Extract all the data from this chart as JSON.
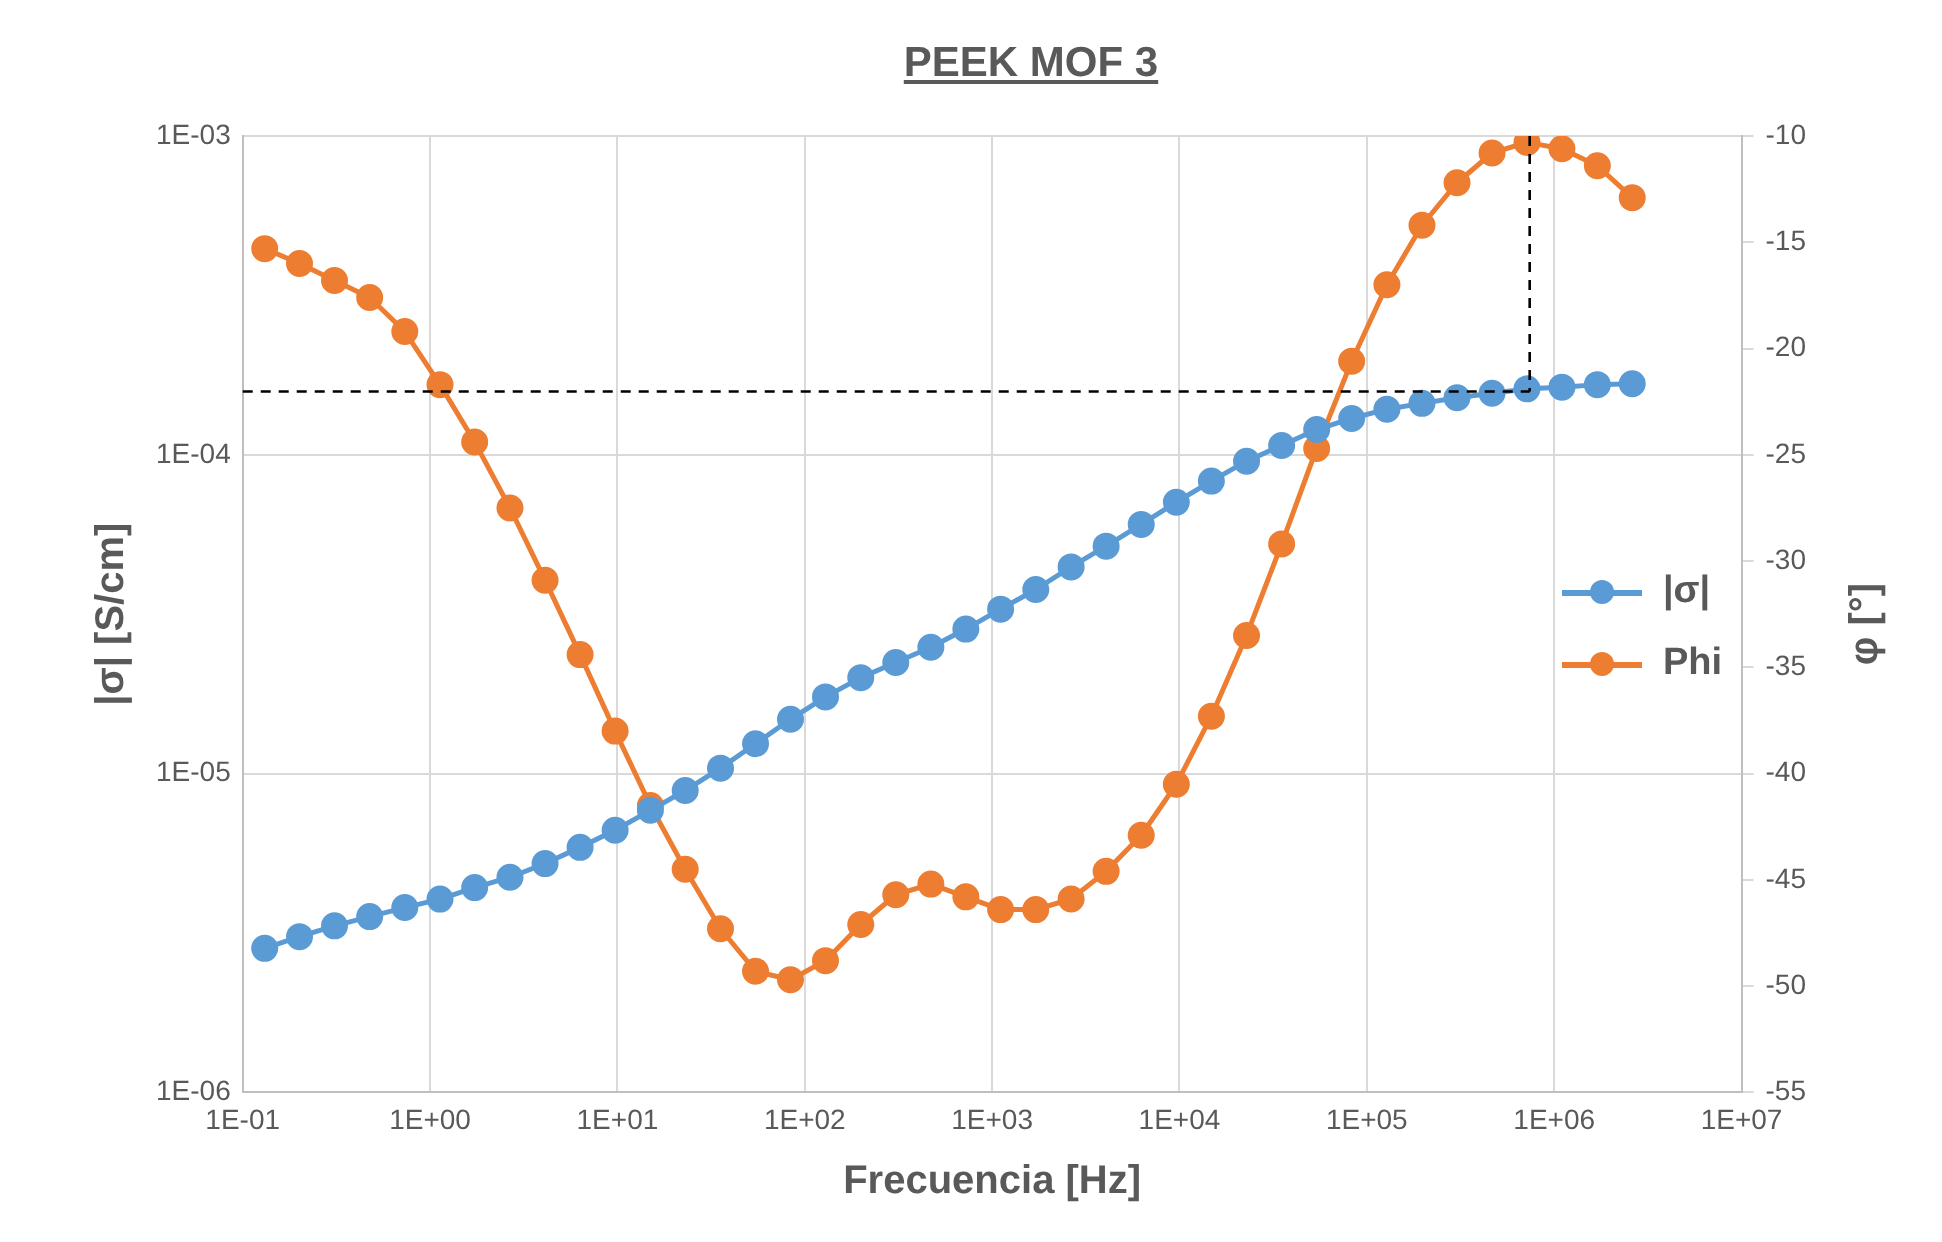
{
  "chart_data": {
    "type": "line",
    "title": "PEEK MOF 3",
    "xlabel": "Frecuencia [Hz]",
    "ylabel": "|σ| [S/cm]",
    "y2label": "φ [°]",
    "log": "xy",
    "marker": "circle",
    "grid": true,
    "legend": "right",
    "xlim": [
      0.1,
      10000000
    ],
    "xticks": [
      {
        "value": 0.1,
        "label": "1E-01"
      },
      {
        "value": 1,
        "label": "1E+00"
      },
      {
        "value": 10,
        "label": "1E+01"
      },
      {
        "value": 100,
        "label": "1E+02"
      },
      {
        "value": 1000,
        "label": "1E+03"
      },
      {
        "value": 10000,
        "label": "1E+04"
      },
      {
        "value": 100000,
        "label": "1E+05"
      },
      {
        "value": 1000000,
        "label": "1E+06"
      },
      {
        "value": 10000000,
        "label": "1E+07"
      }
    ],
    "ylim": [
      1e-06,
      0.001
    ],
    "yticks": [
      {
        "value": 1e-06,
        "label": "1E-06"
      },
      {
        "value": 1e-05,
        "label": "1E-05"
      },
      {
        "value": 0.0001,
        "label": "1E-04"
      },
      {
        "value": 0.001,
        "label": "1E-03"
      }
    ],
    "y2lim": [
      -55,
      -10
    ],
    "y2ticks": [
      -55,
      -50,
      -45,
      -40,
      -35,
      -30,
      -25,
      -20,
      -15,
      -10
    ],
    "x": [
      0.131,
      0.201,
      0.309,
      0.476,
      0.733,
      1.13,
      1.73,
      2.67,
      4.11,
      6.32,
      9.72,
      15,
      23,
      35.5,
      54.6,
      83.9,
      129,
      199,
      306,
      471,
      724,
      1110,
      1710,
      2640,
      4060,
      6250,
      9620,
      14800,
      22800,
      35100,
      54000,
      83000,
      128000,
      197000,
      303000,
      466000,
      716000,
      1100000,
      1700000,
      2610000
    ],
    "series": [
      {
        "name": "|σ|",
        "color": "#5b9bd5",
        "values": [
          2.83e-06,
          3.08e-06,
          3.33e-06,
          3.56e-06,
          3.8e-06,
          4.04e-06,
          4.39e-06,
          4.73e-06,
          5.22e-06,
          5.87e-06,
          6.64e-06,
          7.67e-06,
          8.85e-06,
          1.04e-05,
          1.24e-05,
          1.48e-05,
          1.74e-05,
          2e-05,
          2.23e-05,
          2.49e-05,
          2.84e-05,
          3.28e-05,
          3.78e-05,
          4.45e-05,
          5.17e-05,
          6.05e-05,
          7.1e-05,
          8.27e-05,
          9.55e-05,
          0.000107,
          0.00012,
          0.00013,
          0.000139,
          0.000145,
          0.000151,
          0.000156,
          0.000161,
          0.000163,
          0.000166,
          0.000167
        ]
      },
      {
        "name": "Phi",
        "color": "#ed7d31",
        "axis": "y2",
        "values": [
          -15.3,
          -16,
          -16.8,
          -17.6,
          -19.2,
          -21.7,
          -24.4,
          -27.5,
          -30.9,
          -34.4,
          -38,
          -41.5,
          -44.5,
          -47.3,
          -49.3,
          -49.7,
          -48.8,
          -47.1,
          -45.7,
          -45.2,
          -45.8,
          -46.4,
          -46.4,
          -45.9,
          -44.6,
          -42.9,
          -40.5,
          -37.3,
          -33.5,
          -29.2,
          -24.7,
          -20.6,
          -17,
          -14.2,
          -12.2,
          -10.8,
          -10.3,
          -10.6,
          -11.4,
          -12.9
        ]
      }
    ],
    "ref_lines": [
      {
        "axis": "y",
        "value": 0.000158,
        "color": "#000000",
        "line_style": "dashed"
      },
      {
        "axis": "x",
        "value": 740000,
        "color": "#000000",
        "line_style": "dashed"
      }
    ]
  }
}
